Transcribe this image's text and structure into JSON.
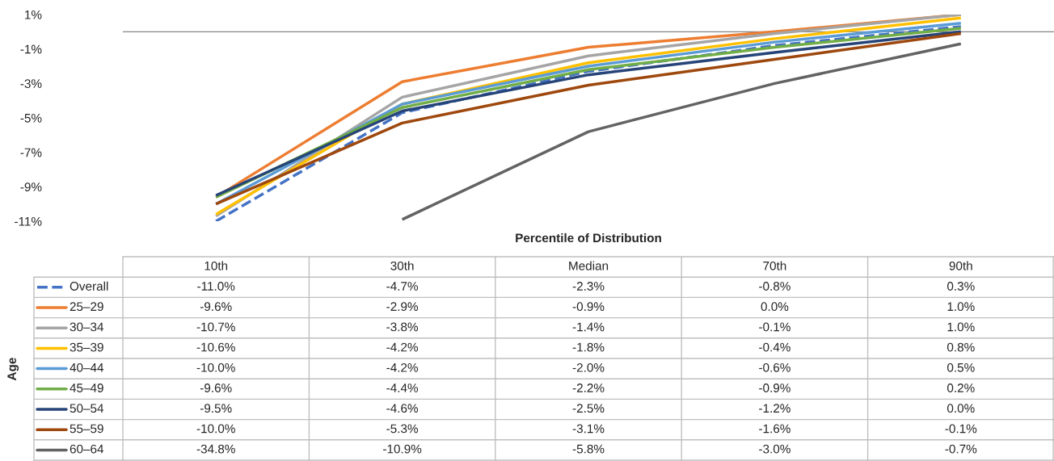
{
  "chart_data": {
    "type": "line",
    "xlabel": "Percentile of Distribution",
    "legend_title": "Age",
    "categories": [
      "10th",
      "30th",
      "Median",
      "70th",
      "90th"
    ],
    "ylim": [
      -11,
      1
    ],
    "legend": "left",
    "yticks": [
      {
        "value": 1,
        "label": "1%"
      },
      {
        "value": -1,
        "label": "-1%"
      },
      {
        "value": -3,
        "label": "-3%"
      },
      {
        "value": -5,
        "label": "-5%"
      },
      {
        "value": -7,
        "label": "-7%"
      },
      {
        "value": -9,
        "label": "-9%"
      },
      {
        "value": -11,
        "label": "-11%"
      }
    ],
    "tick_labels": "y",
    "grid": false,
    "marker": "none",
    "ref_lines": [
      {
        "axis": "y",
        "value": 0,
        "color": "#868686"
      }
    ],
    "series": [
      {
        "name": "Overall",
        "color": "#4472c4",
        "line_style": "dashed",
        "values": [
          -11.0,
          -4.7,
          -2.3,
          -0.8,
          0.3
        ],
        "value_labels": [
          "-11.0%",
          "-4.7%",
          "-2.3%",
          "-0.8%",
          "0.3%"
        ]
      },
      {
        "name": "25–29",
        "color": "#ed7d31",
        "values": [
          -9.6,
          -2.9,
          -0.9,
          0.0,
          1.0
        ],
        "value_labels": [
          "-9.6%",
          "-2.9%",
          "-0.9%",
          "0.0%",
          "1.0%"
        ]
      },
      {
        "name": "30–34",
        "color": "#a5a5a5",
        "values": [
          -10.7,
          -3.8,
          -1.4,
          -0.1,
          1.0
        ],
        "value_labels": [
          "-10.7%",
          "-3.8%",
          "-1.4%",
          "-0.1%",
          "1.0%"
        ]
      },
      {
        "name": "35–39",
        "color": "#ffc000",
        "values": [
          -10.6,
          -4.2,
          -1.8,
          -0.4,
          0.8
        ],
        "value_labels": [
          "-10.6%",
          "-4.2%",
          "-1.8%",
          "-0.4%",
          "0.8%"
        ]
      },
      {
        "name": "40–44",
        "color": "#5b9bd5",
        "values": [
          -10.0,
          -4.2,
          -2.0,
          -0.6,
          0.5
        ],
        "value_labels": [
          "-10.0%",
          "-4.2%",
          "-2.0%",
          "-0.6%",
          "0.5%"
        ]
      },
      {
        "name": "45–49",
        "color": "#70ad47",
        "values": [
          -9.6,
          -4.4,
          -2.2,
          -0.9,
          0.2
        ],
        "value_labels": [
          "-9.6%",
          "-4.4%",
          "-2.2%",
          "-0.9%",
          "0.2%"
        ]
      },
      {
        "name": "50–54",
        "color": "#264478",
        "values": [
          -9.5,
          -4.6,
          -2.5,
          -1.2,
          0.0
        ],
        "value_labels": [
          "-9.5%",
          "-4.6%",
          "-2.5%",
          "-1.2%",
          "0.0%"
        ]
      },
      {
        "name": "55–59",
        "color": "#9e480e",
        "values": [
          -10.0,
          -5.3,
          -3.1,
          -1.6,
          -0.1
        ],
        "value_labels": [
          "-10.0%",
          "-5.3%",
          "-3.1%",
          "-1.6%",
          "-0.1%"
        ]
      },
      {
        "name": "60–64",
        "color": "#636363",
        "values": [
          null,
          -10.9,
          -5.8,
          -3.0,
          -0.7
        ],
        "value_labels": [
          "-34.8%",
          "-10.9%",
          "-5.8%",
          "-3.0%",
          "-0.7%"
        ]
      }
    ]
  }
}
